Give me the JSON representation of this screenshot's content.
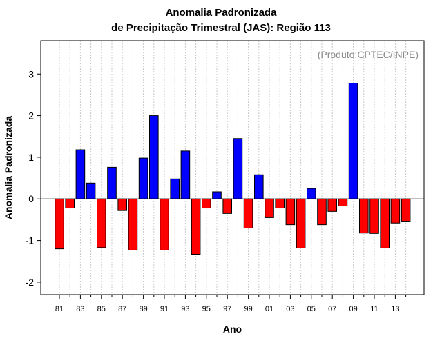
{
  "chart_data": {
    "type": "bar",
    "title": "Anomalia Padronizada",
    "subtitle": "de Precipitação Trimestral (JAS): Região 113",
    "xlabel": "Ano",
    "ylabel": "Anomalia Padronizada",
    "annotation": "(Produto:CPTEC/INPE)",
    "ylim": [
      -2.3,
      3.8
    ],
    "yticks": [
      -2,
      -1,
      0,
      1,
      2,
      3
    ],
    "ytick_labels": [
      "-2",
      "-1",
      "0",
      "1",
      "2",
      "3"
    ],
    "x_tick_labels": [
      "81",
      "83",
      "85",
      "87",
      "89",
      "91",
      "93",
      "95",
      "97",
      "99",
      "01",
      "03",
      "05",
      "07",
      "09",
      "11",
      "13"
    ],
    "categories": [
      "81",
      "82",
      "83",
      "84",
      "85",
      "86",
      "87",
      "88",
      "89",
      "90",
      "91",
      "92",
      "93",
      "94",
      "95",
      "96",
      "97",
      "98",
      "99",
      "00",
      "01",
      "02",
      "03",
      "04",
      "05",
      "06",
      "07",
      "08",
      "09",
      "10",
      "11",
      "12",
      "13",
      "14"
    ],
    "values": [
      -1.2,
      -0.22,
      1.18,
      0.38,
      -1.17,
      0.76,
      -0.28,
      -1.23,
      0.98,
      2.0,
      -1.23,
      0.48,
      1.15,
      -1.33,
      -0.22,
      0.17,
      -0.35,
      1.45,
      -0.7,
      0.58,
      -0.45,
      -0.22,
      -0.62,
      -1.18,
      0.25,
      -0.62,
      -0.3,
      -0.17,
      2.78,
      -0.82,
      -0.83,
      -1.18,
      -0.58,
      -0.55
    ],
    "positive_color": "#0000ff",
    "negative_color": "#ff0000",
    "grid": true
  }
}
